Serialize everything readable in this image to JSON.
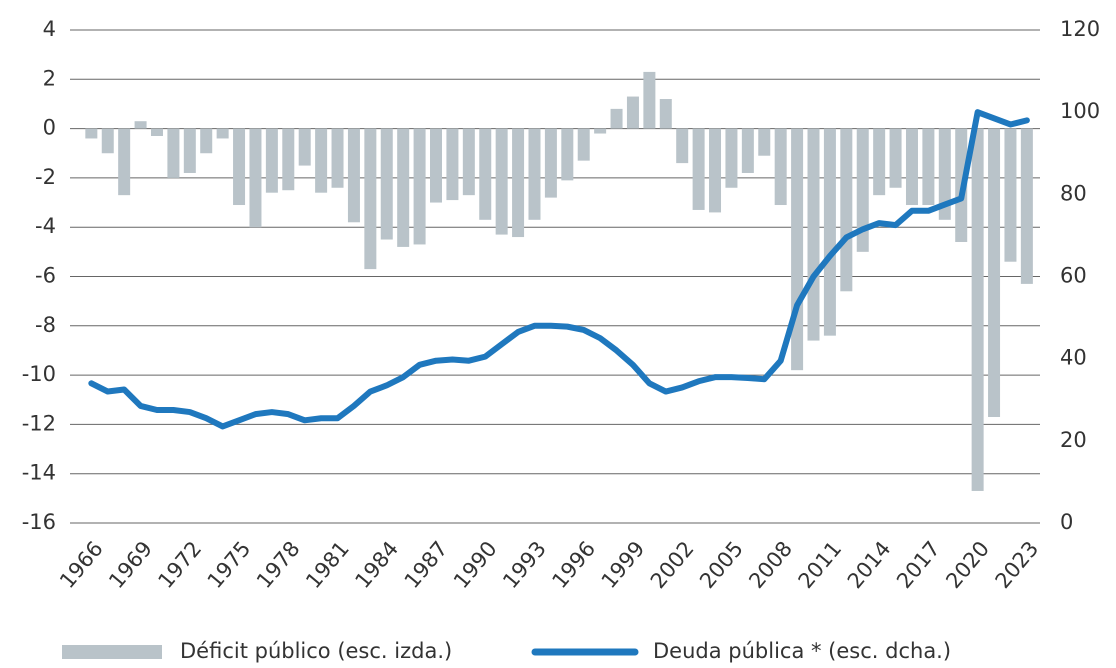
{
  "chart_data": {
    "type": "bar_line",
    "x": [
      1966,
      1967,
      1968,
      1969,
      1970,
      1971,
      1972,
      1973,
      1974,
      1975,
      1976,
      1977,
      1978,
      1979,
      1980,
      1981,
      1982,
      1983,
      1984,
      1985,
      1986,
      1987,
      1988,
      1989,
      1990,
      1991,
      1992,
      1993,
      1994,
      1995,
      1996,
      1997,
      1998,
      1999,
      2000,
      2001,
      2002,
      2003,
      2004,
      2005,
      2006,
      2007,
      2008,
      2009,
      2010,
      2011,
      2012,
      2013,
      2014,
      2015,
      2016,
      2017,
      2018,
      2019,
      2020,
      2021,
      2022,
      2023
    ],
    "series": [
      {
        "name": "Déficit público (esc. izda.)",
        "type": "bar",
        "color": "#b9c3c9",
        "values": [
          -0.4,
          -1.0,
          -2.7,
          0.3,
          -0.3,
          -2.0,
          -1.8,
          -1.0,
          -0.4,
          -3.1,
          -4.0,
          -2.6,
          -2.5,
          -1.5,
          -2.6,
          -2.4,
          -3.8,
          -5.7,
          -4.5,
          -4.8,
          -4.7,
          -3.0,
          -2.9,
          -2.7,
          -3.7,
          -4.3,
          -4.4,
          -3.7,
          -2.8,
          -2.1,
          -1.3,
          -0.2,
          0.8,
          1.3,
          2.3,
          1.2,
          -1.4,
          -3.3,
          -3.4,
          -2.4,
          -1.8,
          -1.1,
          -3.1,
          -9.8,
          -8.6,
          -8.4,
          -6.6,
          -5.0,
          -2.7,
          -2.4,
          -3.1,
          -3.1,
          -3.7,
          -4.6,
          -14.7,
          -11.7,
          -5.4,
          -6.3
        ]
      },
      {
        "name": "Deuda pública * (esc. dcha.)",
        "type": "line",
        "axis": "y2",
        "color": "#1f78be",
        "values": [
          34,
          32,
          32.5,
          28.5,
          27.5,
          27.5,
          27,
          25.5,
          23.5,
          25,
          26.5,
          27,
          26.5,
          25,
          25.5,
          25.5,
          28.5,
          32,
          33.5,
          35.5,
          38.5,
          39.5,
          39.8,
          39.5,
          40.5,
          43.5,
          46.5,
          48,
          48,
          47.8,
          47,
          45,
          42,
          38.5,
          34,
          32,
          33,
          34.5,
          35.5,
          35.5,
          35.3,
          35,
          39.5,
          53,
          60,
          65,
          69.5,
          71.5,
          73,
          72.5,
          76,
          76,
          77.5,
          79,
          100,
          98.5,
          97,
          98
        ]
      }
    ],
    "xlim": [
      1964.7,
      2023.8
    ],
    "xticks": [
      1966,
      1969,
      1972,
      1975,
      1978,
      1981,
      1984,
      1987,
      1990,
      1993,
      1996,
      1999,
      2002,
      2005,
      2008,
      2011,
      2014,
      2017,
      2020,
      2023
    ],
    "ylim": [
      -16,
      4
    ],
    "yticks": [
      -16,
      -14,
      -12,
      -10,
      -8,
      -6,
      -4,
      -2,
      0,
      2,
      4
    ],
    "y2lim": [
      0,
      120
    ],
    "y2ticks": [
      0,
      20,
      40,
      60,
      80,
      100,
      120
    ],
    "grid": true,
    "legend": "bottom"
  }
}
